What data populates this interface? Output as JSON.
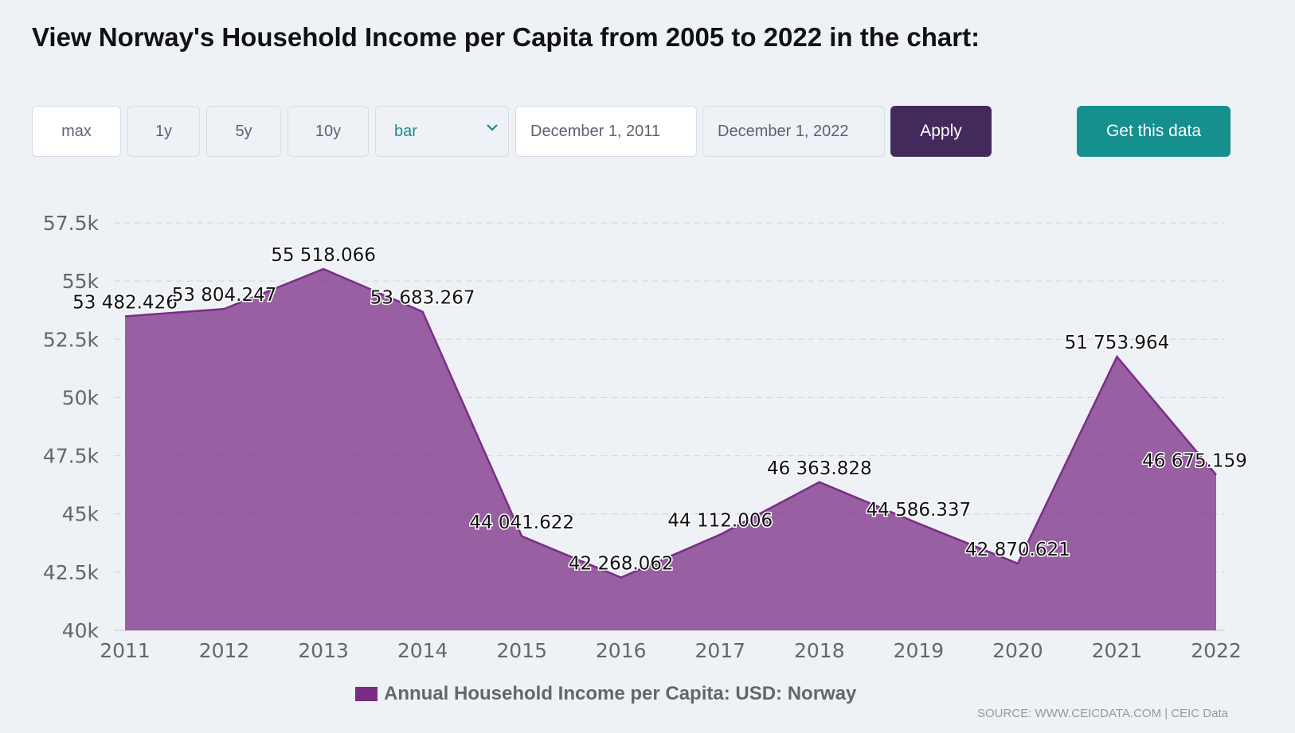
{
  "title": "View Norway's Household Income per Capita from 2005 to 2022 in the chart:",
  "toolbar": {
    "range_buttons": [
      "max",
      "1y",
      "5y",
      "10y"
    ],
    "chart_type_value": "bar",
    "start_date": "December 1, 2011",
    "end_date": "December 1, 2022",
    "apply_label": "Apply",
    "get_data_label": "Get this data"
  },
  "legend_label": "Annual Household Income per Capita: USD: Norway",
  "source": "SOURCE: WWW.CEICDATA.COM | CEIC Data",
  "colors": {
    "series": "#7b2d86",
    "apply_button": "#432a5c",
    "get_data_button": "#168f8f",
    "select_text": "#1a8c8c"
  },
  "chart_data": {
    "type": "area",
    "x": [
      "2011",
      "2012",
      "2013",
      "2014",
      "2015",
      "2016",
      "2017",
      "2018",
      "2019",
      "2020",
      "2021",
      "2022"
    ],
    "series": [
      {
        "name": "Annual Household Income per Capita: USD: Norway",
        "values": [
          53482.426,
          53804.247,
          55518.066,
          53683.267,
          44041.622,
          42268.062,
          44112.006,
          46363.828,
          44586.337,
          42870.621,
          51753.964,
          46675.159
        ],
        "labels": [
          "53 482.426",
          "53 804.247",
          "55 518.066",
          "53 683.267",
          "44 041.622",
          "42 268.062",
          "44 112.006",
          "46 363.828",
          "44 586.337",
          "42 870.621",
          "51 753.964",
          "46 675.159"
        ]
      }
    ],
    "y_ticks": [
      "40k",
      "42.5k",
      "45k",
      "47.5k",
      "50k",
      "52.5k",
      "55k",
      "57.5k"
    ],
    "ylim": [
      40000,
      57500
    ],
    "grid": true,
    "legend_position": "bottom"
  }
}
